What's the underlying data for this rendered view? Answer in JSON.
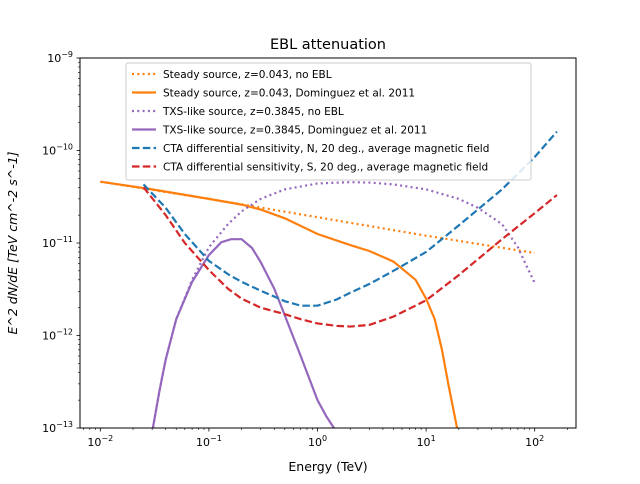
{
  "chart_data": {
    "type": "line",
    "title": "EBL attenuation",
    "xlabel": "Energy (TeV)",
    "ylabel": "E^2 dN/dE [TeV cm^-2 s^-1]",
    "xscale": "log",
    "yscale": "log",
    "xlim": [
      0.0065,
      240
    ],
    "ylim": [
      1e-13,
      1e-09
    ],
    "x_ticks": [
      {
        "value": 0.01,
        "label_base": "10",
        "label_exp": "−2"
      },
      {
        "value": 0.1,
        "label_base": "10",
        "label_exp": "−1"
      },
      {
        "value": 1,
        "label_base": "10",
        "label_exp": "0"
      },
      {
        "value": 10,
        "label_base": "10",
        "label_exp": "1"
      },
      {
        "value": 100,
        "label_base": "10",
        "label_exp": "2"
      }
    ],
    "y_ticks": [
      {
        "value": 1e-13,
        "label_base": "10",
        "label_exp": "−13"
      },
      {
        "value": 1e-12,
        "label_base": "10",
        "label_exp": "−12"
      },
      {
        "value": 1e-11,
        "label_base": "10",
        "label_exp": "−11"
      },
      {
        "value": 1e-10,
        "label_base": "10",
        "label_exp": "−10"
      },
      {
        "value": 1e-09,
        "label_base": "10",
        "label_exp": "−9"
      }
    ],
    "legend_position": "top-center",
    "series": [
      {
        "name": "Steady source, z=0.043, no EBL",
        "color": "#ff7f0e",
        "style": "dotted",
        "x": [
          0.01,
          0.1,
          1,
          10,
          100
        ],
        "y": [
          4.6e-11,
          3e-11,
          1.9e-11,
          1.2e-11,
          7.8e-12
        ]
      },
      {
        "name": "Steady source, z=0.043, Dominguez et al. 2011",
        "color": "#ff7f0e",
        "style": "solid",
        "x": [
          0.01,
          0.03,
          0.1,
          0.2,
          0.3,
          0.5,
          1,
          2,
          3,
          5,
          8,
          10,
          12,
          14,
          16,
          18,
          20
        ],
        "y": [
          4.6e-11,
          3.8e-11,
          3e-11,
          2.6e-11,
          2.3e-11,
          1.85e-11,
          1.25e-11,
          9.5e-12,
          8.2e-12,
          6.3e-12,
          4e-12,
          2.5e-12,
          1.5e-12,
          7e-13,
          3e-13,
          1.5e-13,
          8e-14
        ]
      },
      {
        "name": "TXS-like source, z=0.3845, no EBL",
        "color": "#9467bd",
        "style": "dotted",
        "x": [
          0.03,
          0.035,
          0.04,
          0.05,
          0.07,
          0.1,
          0.15,
          0.2,
          0.3,
          0.5,
          1,
          2,
          3,
          5,
          10,
          20,
          30,
          50,
          70,
          85,
          100
        ],
        "y": [
          9e-14,
          2.5e-13,
          5.5e-13,
          1.5e-12,
          4e-12,
          9e-12,
          1.6e-11,
          2.2e-11,
          3e-11,
          3.8e-11,
          4.4e-11,
          4.55e-11,
          4.5e-11,
          4.3e-11,
          3.8e-11,
          3e-11,
          2.4e-11,
          1.6e-11,
          9e-12,
          5.5e-12,
          3.7e-12
        ]
      },
      {
        "name": "TXS-like source, z=0.3845, Dominguez et al. 2011",
        "color": "#9467bd",
        "style": "solid",
        "x": [
          0.03,
          0.035,
          0.04,
          0.05,
          0.07,
          0.1,
          0.13,
          0.16,
          0.2,
          0.25,
          0.3,
          0.4,
          0.5,
          0.7,
          1,
          1.2,
          1.5
        ],
        "y": [
          9e-14,
          2.5e-13,
          5.5e-13,
          1.5e-12,
          3.8e-12,
          7.4e-12,
          1.02e-11,
          1.1e-11,
          1.1e-11,
          8.8e-12,
          6.2e-12,
          3.2e-12,
          1.65e-12,
          6e-13,
          2e-13,
          1.35e-13,
          9e-14
        ]
      },
      {
        "name": "CTA differential sensitivity, N, 20 deg., average magnetic field",
        "color": "#1f77b4",
        "style": "dashed",
        "x": [
          0.025,
          0.04,
          0.06,
          0.1,
          0.15,
          0.2,
          0.3,
          0.5,
          0.7,
          1,
          1.5,
          2,
          3,
          5,
          10,
          20,
          50,
          100,
          160
        ],
        "y": [
          4.3e-11,
          2.4e-11,
          1.25e-11,
          6.4e-12,
          4.6e-12,
          3.8e-12,
          3.05e-12,
          2.35e-12,
          2.1e-12,
          2.1e-12,
          2.45e-12,
          2.9e-12,
          3.6e-12,
          5e-12,
          8e-12,
          1.55e-11,
          3.8e-11,
          8.5e-11,
          1.6e-10
        ]
      },
      {
        "name": "CTA differential sensitivity, S, 20 deg., average magnetic field",
        "color": "#d62728",
        "style": "dashed",
        "x": [
          0.025,
          0.04,
          0.06,
          0.1,
          0.15,
          0.2,
          0.3,
          0.5,
          0.7,
          1,
          1.5,
          2,
          3,
          5,
          10,
          20,
          50,
          100,
          160
        ],
        "y": [
          4e-11,
          2e-11,
          1e-11,
          5.1e-12,
          3.2e-12,
          2.5e-12,
          2e-12,
          1.7e-12,
          1.5e-12,
          1.35e-12,
          1.27e-12,
          1.25e-12,
          1.3e-12,
          1.6e-12,
          2.4e-12,
          4.5e-12,
          1.1e-11,
          2.1e-11,
          3.3e-11
        ]
      }
    ]
  }
}
